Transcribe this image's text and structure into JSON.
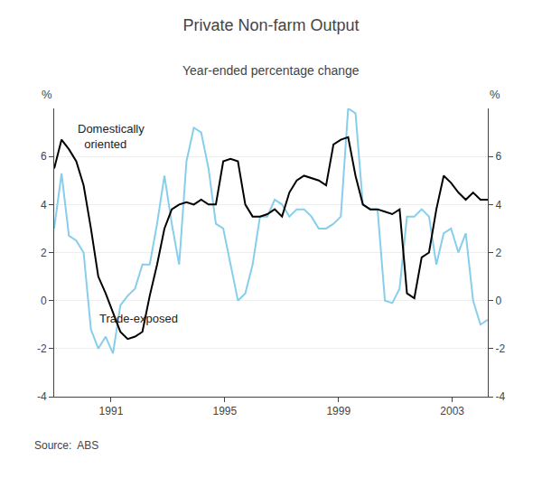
{
  "chart_data": {
    "type": "line",
    "title": "Private Non-farm Output",
    "subtitle": "Year-ended percentage change",
    "ylabel": "%",
    "y2label": "%",
    "source": "Source:  ABS",
    "x": [
      1989.0,
      1989.258475,
      1989.516949,
      1989.775424,
      1990.033898,
      1990.292373,
      1990.550847,
      1990.809322,
      1991.067797,
      1991.326271,
      1991.584746,
      1991.84322,
      1992.101695,
      1992.360169,
      1992.618644,
      1992.877119,
      1993.135593,
      1993.394068,
      1993.652542,
      1993.911017,
      1994.169492,
      1994.427966,
      1994.686441,
      1994.944915,
      1995.20339,
      1995.461864,
      1995.720339,
      1995.978814,
      1996.237288,
      1996.495763,
      1996.754237,
      1997.012712,
      1997.271186,
      1997.529661,
      1997.788136,
      1998.04661,
      1998.305085,
      1998.563559,
      1998.822034,
      1999.080508,
      1999.338983,
      1999.597458,
      1999.855932,
      2000.114407,
      2000.372881,
      2000.631356,
      2000.889831,
      2001.148305,
      2001.40678,
      2001.665254,
      2001.923729,
      2002.182203,
      2002.440678,
      2002.699153,
      2002.957627,
      2003.216102,
      2003.474576,
      2003.733051,
      2003.991525,
      2004.25
    ],
    "series": [
      {
        "name": "Trade-exposed",
        "color": "#87CEEB",
        "values": [
          3.0,
          5.3,
          2.7,
          2.5,
          2.0,
          -1.2,
          -2.0,
          -1.5,
          -2.2,
          -0.2,
          0.2,
          0.5,
          1.5,
          1.5,
          3.2,
          5.2,
          3.2,
          1.5,
          5.8,
          7.2,
          7.0,
          5.5,
          3.2,
          3.0,
          1.5,
          0.0,
          0.3,
          1.5,
          3.5,
          3.5,
          4.2,
          4.0,
          3.5,
          3.8,
          3.8,
          3.5,
          3.0,
          3.0,
          3.2,
          3.5,
          8.0,
          7.8,
          4.0,
          3.8,
          3.8,
          0.0,
          -0.1,
          0.5,
          3.5,
          3.5,
          3.8,
          3.5,
          1.5,
          2.8,
          3.0,
          2.0,
          2.8,
          0.0,
          -1.0,
          -0.8
        ]
      },
      {
        "name": "Domestically\n  oriented",
        "color": "#000000",
        "values": [
          5.5,
          6.7,
          6.3,
          5.8,
          4.8,
          3.0,
          1.0,
          0.3,
          -0.5,
          -1.3,
          -1.6,
          -1.5,
          -1.3,
          0.2,
          1.5,
          3.0,
          3.8,
          4.0,
          4.1,
          4.0,
          4.2,
          4.0,
          4.0,
          5.8,
          5.9,
          5.8,
          4.0,
          3.5,
          3.5,
          3.6,
          3.8,
          3.5,
          4.5,
          5.0,
          5.2,
          5.1,
          5.0,
          4.8,
          6.5,
          6.7,
          6.8,
          5.2,
          4.0,
          3.8,
          3.8,
          3.7,
          3.6,
          3.8,
          0.3,
          0.1,
          1.8,
          2.0,
          3.8,
          5.2,
          4.9,
          4.5,
          4.2,
          4.5,
          4.2,
          4.2
        ]
      }
    ],
    "xlim": [
      1989.0,
      2004.25
    ],
    "xticks": [
      1991,
      1995,
      1999,
      2003
    ],
    "ylim": [
      -4,
      8
    ],
    "yticks": [
      -4,
      -2,
      0,
      2,
      4,
      6
    ],
    "y2lim": [
      -4,
      8
    ],
    "y2ticks": [
      -4,
      -2,
      0,
      2,
      4,
      6
    ],
    "grid": true
  }
}
